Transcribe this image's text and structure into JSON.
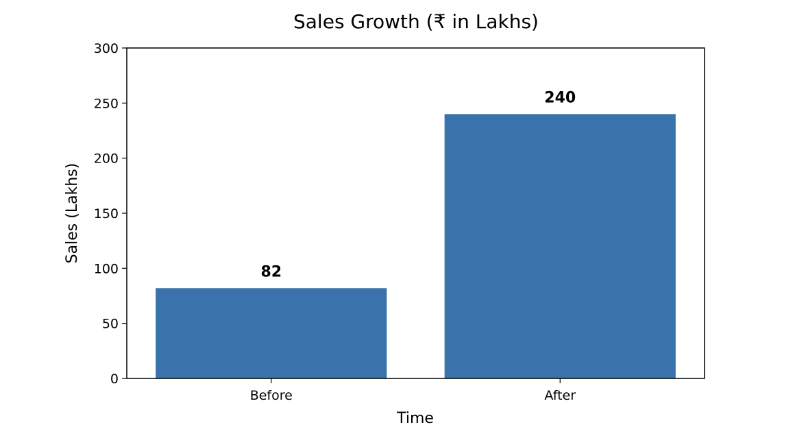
{
  "chart_data": {
    "type": "bar",
    "title": "Sales Growth (₹ in Lakhs)",
    "xlabel": "Time",
    "ylabel": "Sales (Lakhs)",
    "categories": [
      "Before",
      "After"
    ],
    "values": [
      82,
      240
    ],
    "data_labels": [
      "82",
      "240"
    ],
    "ylim": [
      0,
      300
    ],
    "yticks": [
      "0",
      "50",
      "100",
      "150",
      "200",
      "250",
      "300"
    ],
    "grid": false,
    "bar_color": "#3a73ac"
  }
}
